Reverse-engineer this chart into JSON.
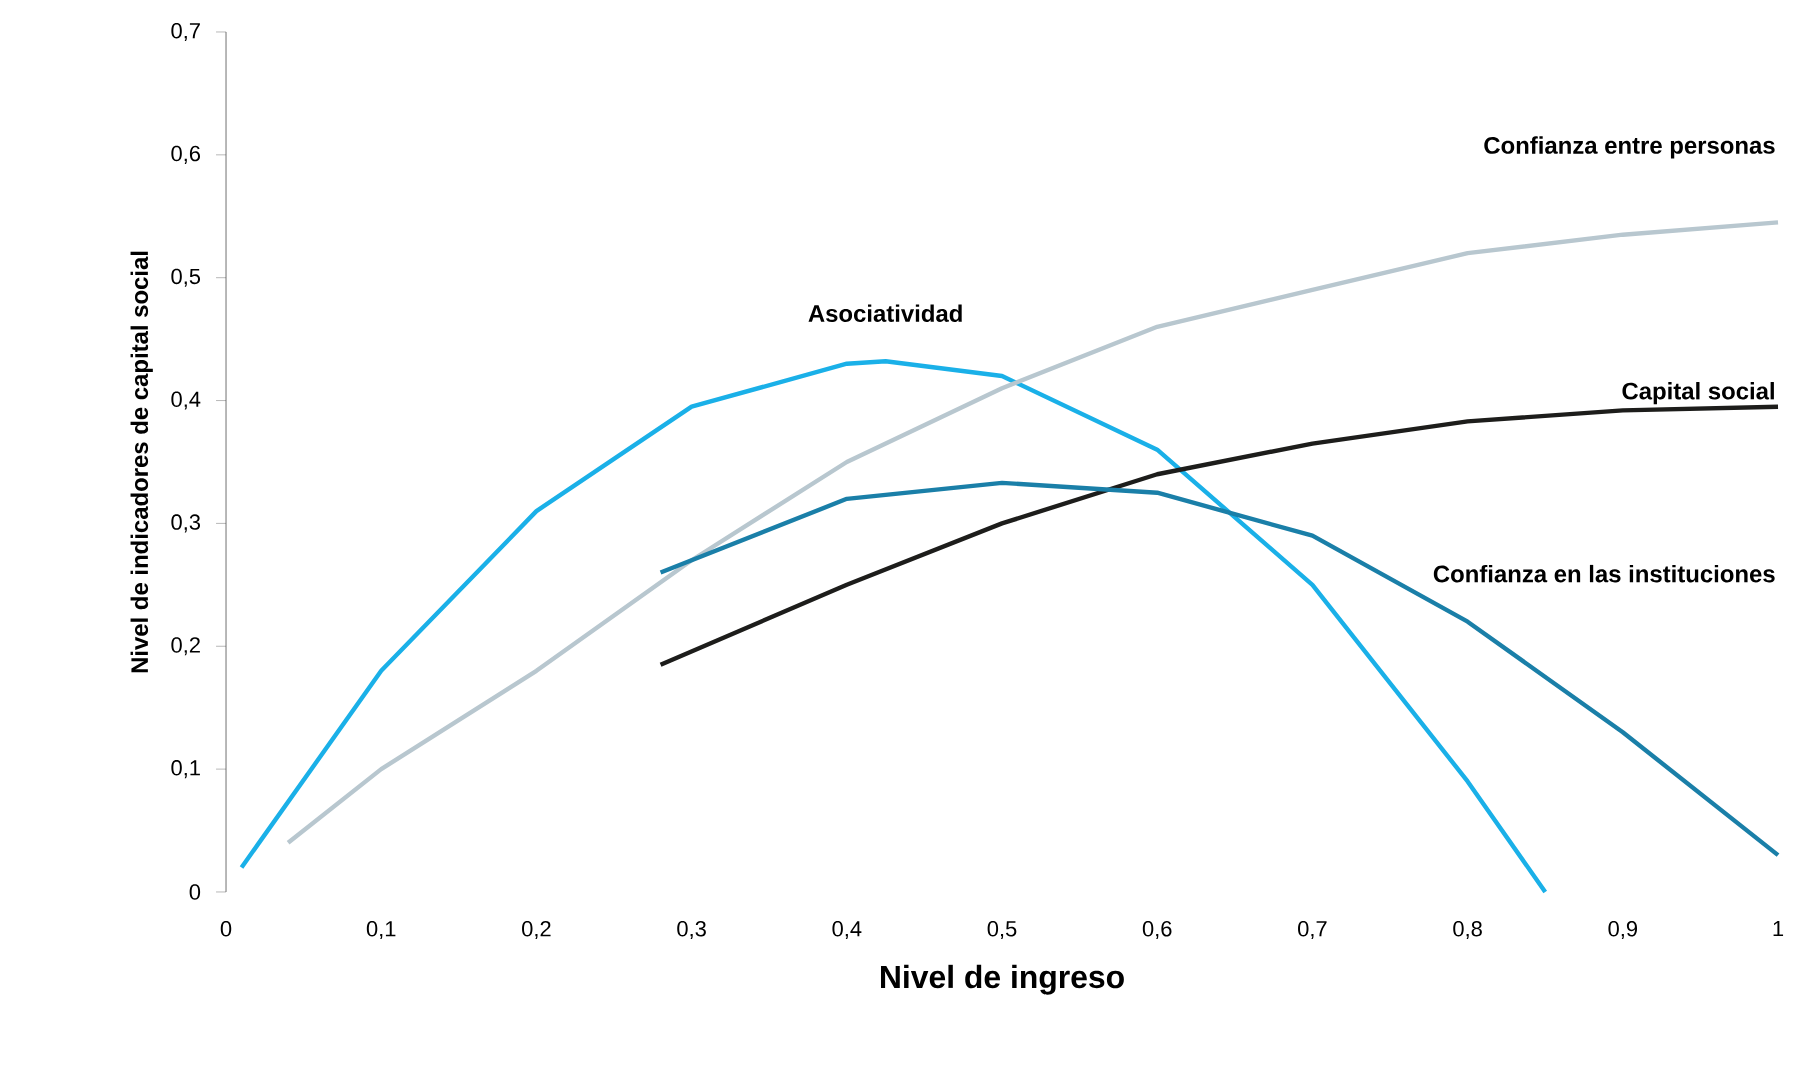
{
  "chart_data": {
    "type": "line",
    "xlabel": "Nivel de ingreso",
    "ylabel": "Nivel de indicadores de capital social",
    "xlim": [
      0,
      1
    ],
    "ylim": [
      0,
      0.7
    ],
    "xticks": [
      0,
      {
        "value": 0.1,
        "label": "0,1"
      },
      {
        "value": 0.2,
        "label": "0,2"
      },
      {
        "value": 0.3,
        "label": "0,3"
      },
      {
        "value": 0.4,
        "label": "0,4"
      },
      {
        "value": 0.5,
        "label": "0,5"
      },
      {
        "value": 0.6,
        "label": "0,6"
      },
      {
        "value": 0.7,
        "label": "0,7"
      },
      {
        "value": 0.8,
        "label": "0,8"
      },
      {
        "value": 0.9,
        "label": "0,9"
      },
      1
    ],
    "yticks": [
      0,
      {
        "value": 0.1,
        "label": "0,1"
      },
      {
        "value": 0.2,
        "label": "0,2"
      },
      {
        "value": 0.3,
        "label": "0,3"
      },
      {
        "value": 0.4,
        "label": "0,4"
      },
      {
        "value": 0.5,
        "label": "0,5"
      },
      {
        "value": 0.6,
        "label": "0,6"
      },
      {
        "value": 0.7,
        "label": "0,7"
      }
    ],
    "grid": false,
    "legend": false,
    "series": [
      {
        "name": "Asociatividad",
        "color": "#1ab0e8",
        "x": [
          0.01,
          0.1,
          0.2,
          0.3,
          0.4,
          0.425,
          0.5,
          0.6,
          0.7,
          0.8,
          0.85
        ],
        "values": [
          0.02,
          0.18,
          0.31,
          0.395,
          0.43,
          0.432,
          0.42,
          0.36,
          0.25,
          0.09,
          0
        ]
      },
      {
        "name": "Confianza entre personas",
        "color": "#b8c7cf",
        "x": [
          0.04,
          0.1,
          0.2,
          0.3,
          0.4,
          0.5,
          0.6,
          0.7,
          0.8,
          0.9,
          1
        ],
        "values": [
          0.04,
          0.1,
          0.18,
          0.27,
          0.35,
          0.41,
          0.46,
          0.49,
          0.52,
          0.535,
          0.545
        ]
      },
      {
        "name": "Capital social",
        "color": "#1d1d1b",
        "x": [
          0.28,
          0.4,
          0.5,
          0.6,
          0.7,
          0.8,
          0.9,
          1
        ],
        "values": [
          0.185,
          0.25,
          0.3,
          0.34,
          0.365,
          0.383,
          0.392,
          0.395
        ]
      },
      {
        "name": "Confianza en las instituciones",
        "color": "#1a7fa8",
        "x": [
          0.28,
          0.4,
          0.5,
          0.6,
          0.7,
          0.8,
          0.9,
          1
        ],
        "values": [
          0.26,
          0.32,
          0.333,
          0.325,
          0.29,
          0.22,
          0.13,
          0.03
        ]
      }
    ]
  }
}
